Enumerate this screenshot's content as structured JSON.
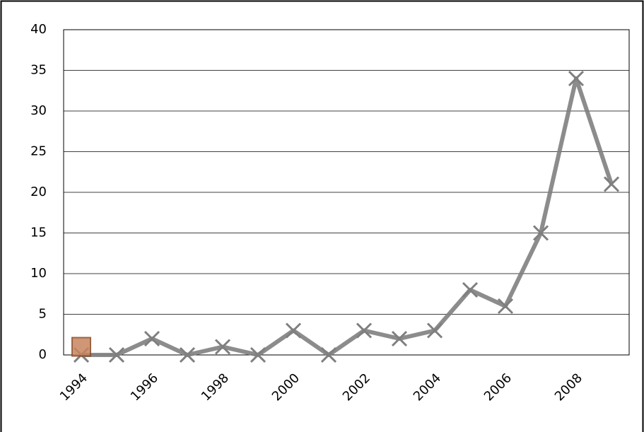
{
  "chart_data": {
    "type": "line",
    "categories": [
      "1994",
      null,
      "1996",
      null,
      "1998",
      null,
      "2000",
      null,
      "2002",
      null,
      "2004",
      null,
      "2006",
      null,
      "2008",
      null
    ],
    "series": [
      {
        "color": "#7f7f7f",
        "values": [
          0,
          0,
          2,
          0,
          1,
          0,
          3,
          0,
          3,
          2,
          3,
          8,
          6,
          15,
          34,
          21
        ]
      },
      {
        "color": "#c8865f",
        "values": [
          1,
          null,
          null,
          null,
          null,
          null,
          null,
          null,
          null,
          null,
          null,
          null,
          null,
          null,
          null,
          null
        ]
      }
    ],
    "ylim": [
      0,
      40
    ],
    "yticks": [
      0,
      5,
      10,
      15,
      20,
      25,
      30,
      35,
      40
    ],
    "grid": true
  }
}
